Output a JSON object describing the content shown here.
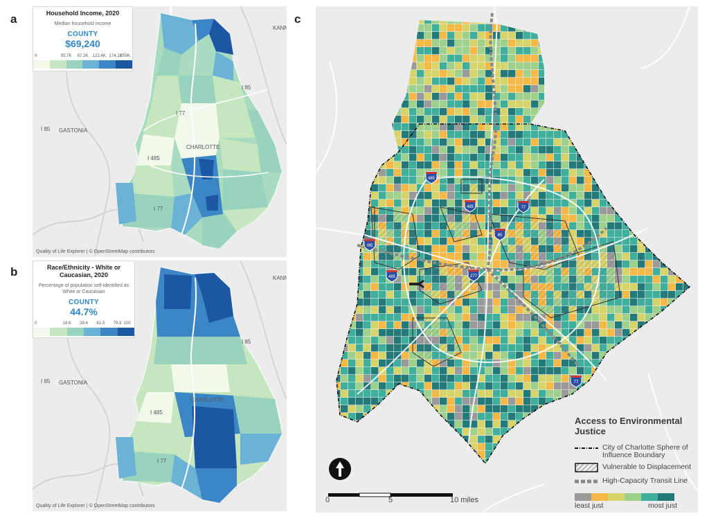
{
  "panels": {
    "a": {
      "letter": "a",
      "legend_title": "Household Income, 2020",
      "legend_subtitle": "Median household income",
      "county_label": "COUNTY",
      "county_value": "$69,240",
      "ramp_colors": [
        "#f2f8ea",
        "#c6e6bf",
        "#99d3bd",
        "#6ab3d6",
        "#3d86c6",
        "#1d56a3"
      ],
      "ramp_ticks": [
        "0",
        "55.7K",
        "87.2K",
        "122.4K",
        "174.1K",
        "250K"
      ],
      "attribution": "Quality of Life Explorer | © OpenStreetMap contributors",
      "places": {
        "kannapolis": "KANN",
        "gastonia": "GASTONIA",
        "charlotte": "CHARLOTTE",
        "i85_east": "I 85",
        "i85_west": "I 85",
        "i77_north": "I 77",
        "i485": "I 485",
        "i77_south": "I 77"
      }
    },
    "b": {
      "letter": "b",
      "legend_title": "Race/Ethnicity - White or Caucasian, 2020",
      "legend_subtitle": "Percentage of population self-identified as White or Caucasian",
      "county_label": "COUNTY",
      "county_value": "44.7%",
      "ramp_colors": [
        "#f2f8ea",
        "#c6e6bf",
        "#99d3bd",
        "#6ab3d6",
        "#3d86c6",
        "#1d56a3"
      ],
      "ramp_ticks": [
        "0",
        "18.6",
        "39.4",
        "61.3",
        "79.9",
        "100"
      ],
      "attribution": "Quality of Life Explorer | © OpenStreetMap contributors",
      "places": {
        "kannapolis": "KANN",
        "gastonia": "GASTONIA",
        "charlotte": "CHARLOTTE",
        "i85_east": "I 85",
        "i85_west": "I 85",
        "i485": "I 485",
        "i77_south": "I 77"
      }
    },
    "c": {
      "letter": "c",
      "legend_title": "Access to Environmental Justice",
      "legend_items": {
        "boundary": "City of Charlotte Sphere of Influence Boundary",
        "vulnerable": "Vulnerable to Displacement",
        "transit": "High-Capacity Transit Line"
      },
      "ramp_colors": [
        "#9a9a9a",
        "#f6b946",
        "#d7d56a",
        "#9ed28c",
        "#3fae9a",
        "#237a79"
      ],
      "ramp_min_label": "least just",
      "ramp_max_label": "most just",
      "scale_labels": [
        "0",
        "5",
        "10 miles"
      ],
      "shields": [
        "I85",
        "485",
        "77",
        "485",
        "277",
        "85",
        "485",
        "77"
      ]
    }
  }
}
